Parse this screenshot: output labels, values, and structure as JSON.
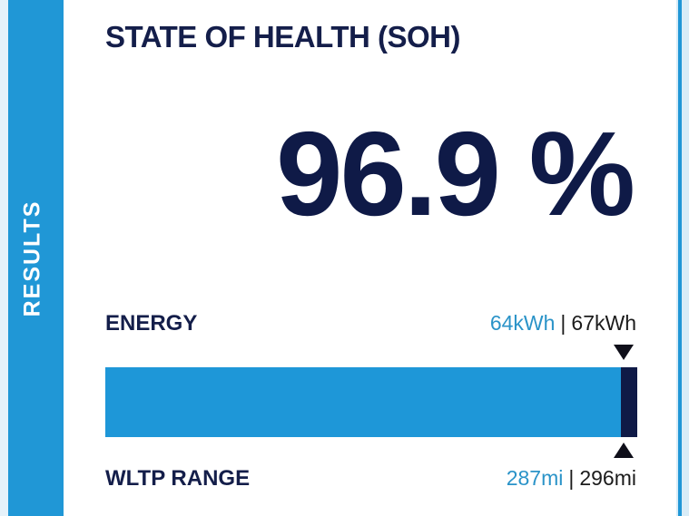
{
  "sidebar": {
    "label": "RESULTS"
  },
  "title": "STATE OF HEALTH (SOH)",
  "soh": {
    "display": "96.9 %",
    "fraction": 0.969
  },
  "energy": {
    "label": "ENERGY",
    "current": "64kWh",
    "separator": "|",
    "original": "67kWh"
  },
  "range": {
    "label": "WLTP RANGE",
    "current": "287mi",
    "separator": "|",
    "original": "296mi"
  },
  "colors": {
    "accent_blue": "#1e97d8",
    "navy": "#0f1a47",
    "current_value": "#2a93c8"
  }
}
